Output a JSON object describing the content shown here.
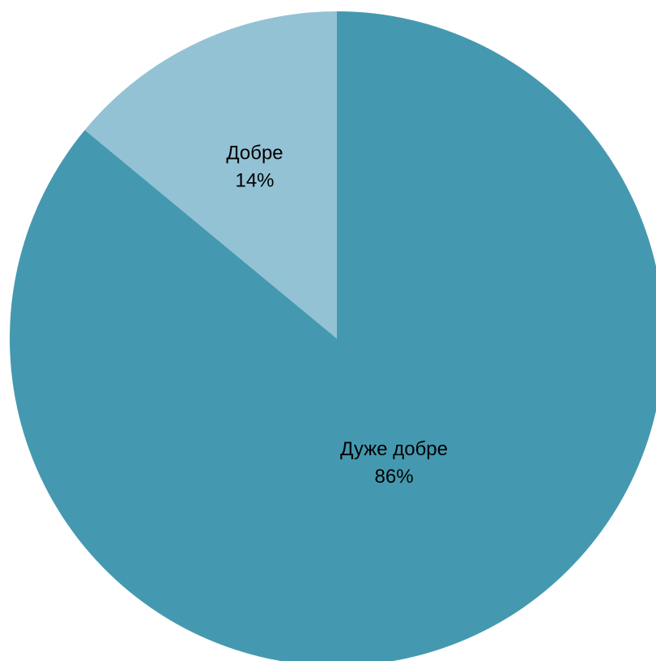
{
  "chart_data": {
    "type": "pie",
    "title": "",
    "start_angle_deg": 0,
    "direction": "clockwise",
    "legend": "none",
    "slices": [
      {
        "label": "Дуже добре",
        "value": 86,
        "value_label": "86%",
        "color": "#4499B0"
      },
      {
        "label": "Добре",
        "value": 14,
        "value_label": "14%",
        "color": "#93C2D4"
      }
    ]
  }
}
